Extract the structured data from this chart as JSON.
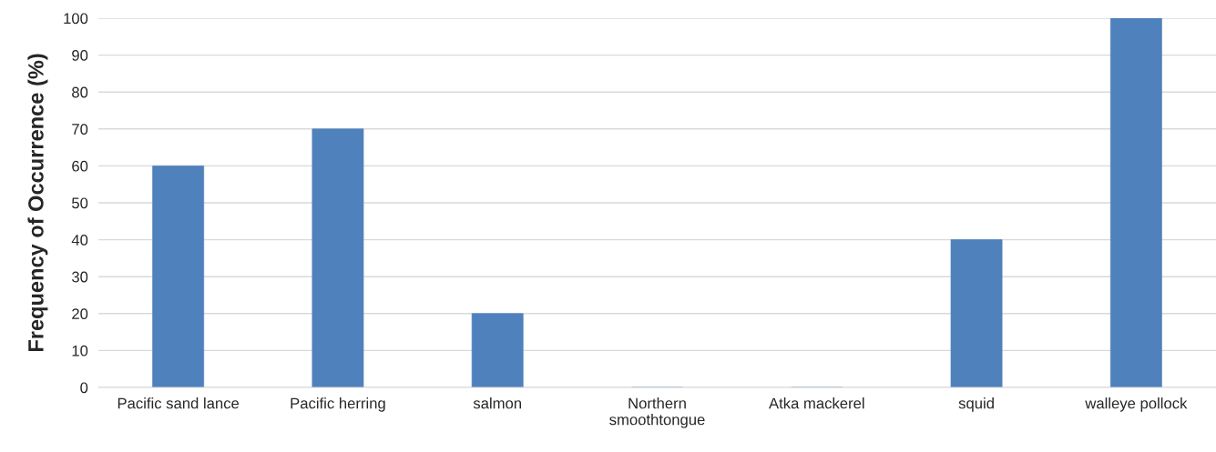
{
  "chart_data": {
    "type": "bar",
    "ylabel": "Frequency of Occurrence (%)",
    "categories": [
      "Pacific sand lance",
      "Pacific herring",
      "salmon",
      "Northern\nsmoothtongue",
      "Atka mackerel",
      "squid",
      "walleye pollock"
    ],
    "values": [
      60,
      70,
      20,
      0,
      0,
      40,
      100
    ],
    "color": "#4f81bd",
    "ylim": [
      0,
      100
    ],
    "yticks": [
      0,
      10,
      20,
      30,
      40,
      50,
      60,
      70,
      80,
      90,
      100
    ],
    "grid": "y"
  }
}
